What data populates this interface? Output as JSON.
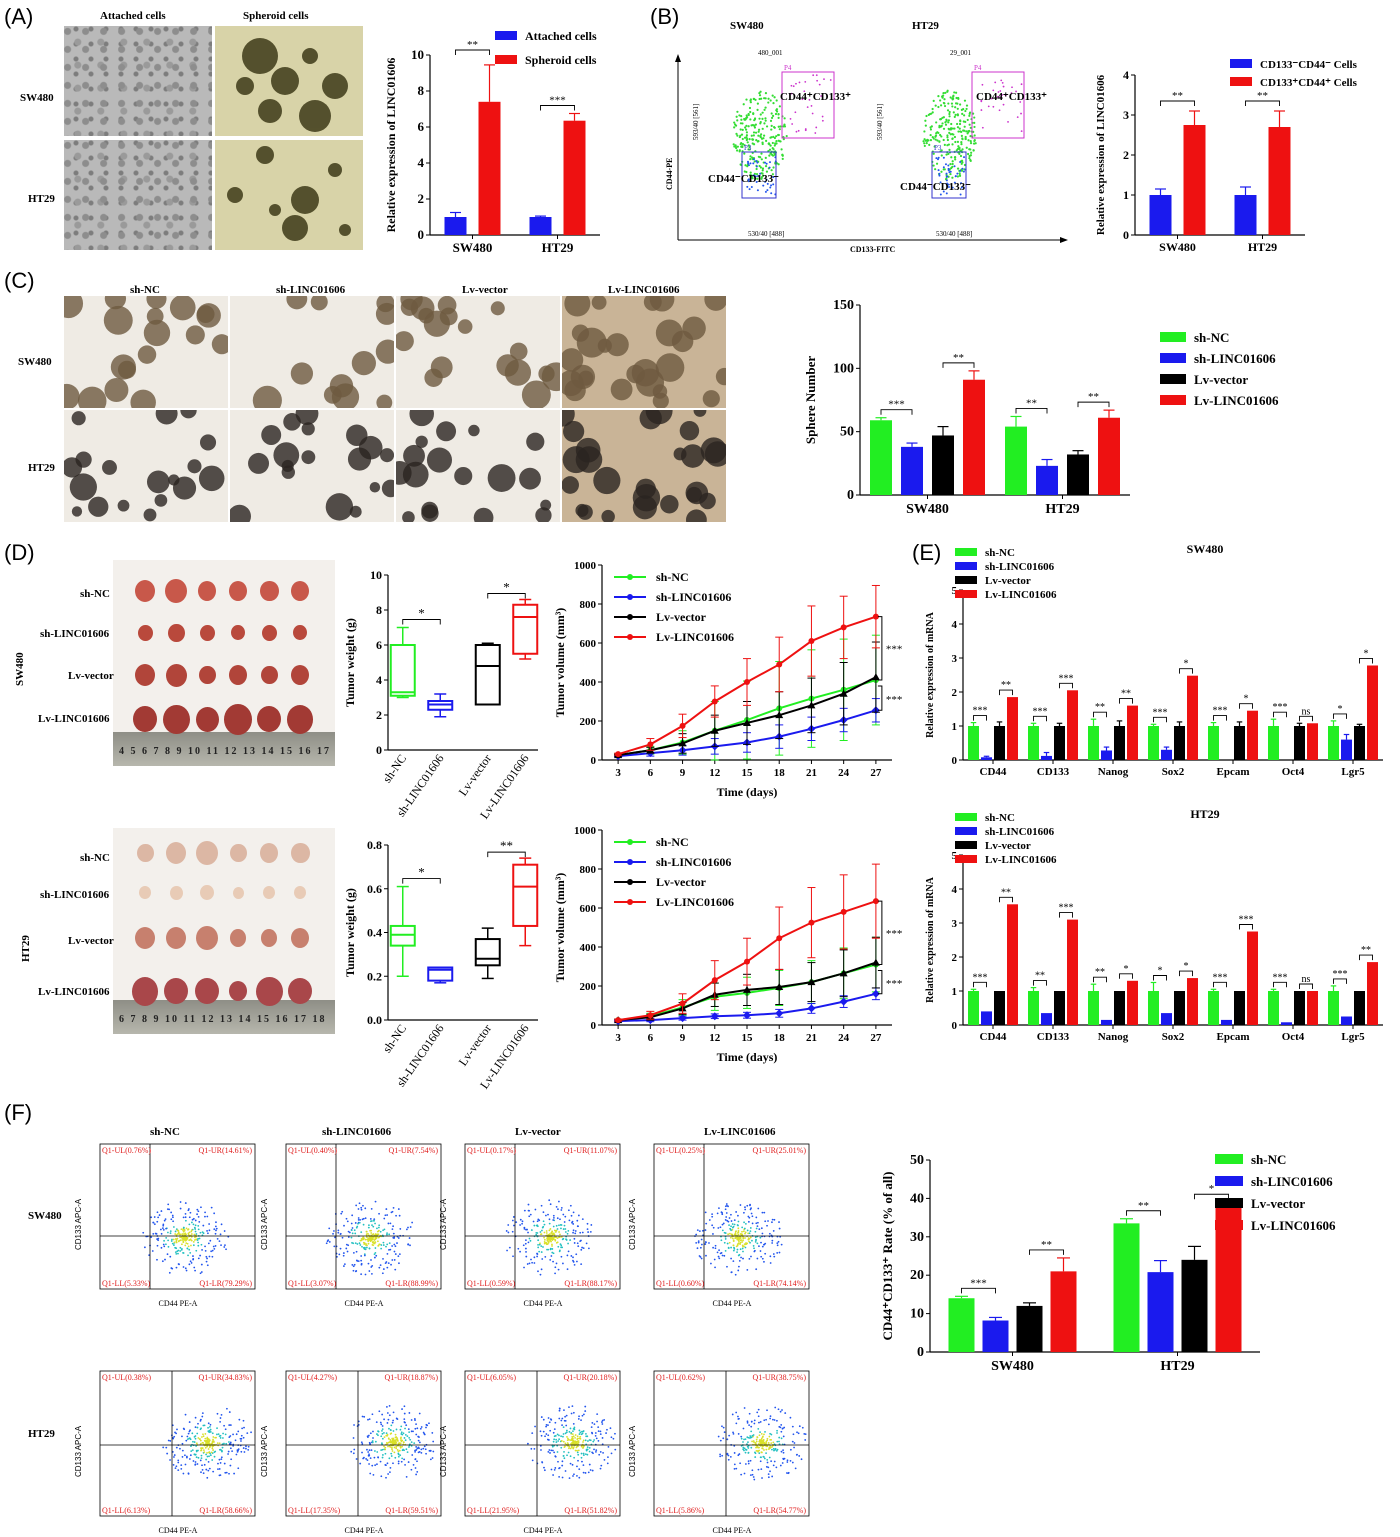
{
  "panels": {
    "A": {
      "letter": "(A)",
      "col_labels": [
        "Attached cells",
        "Spheroid cells"
      ],
      "row_labels": [
        "SW480",
        "HT29"
      ]
    },
    "B": {
      "letter": "(B)",
      "plot_titles": [
        "SW480",
        "HT29"
      ],
      "sample_names": [
        "480_001",
        "29_001"
      ],
      "gates_hi": "CD44⁺CD133⁺",
      "gates_lo": "CD44⁻CD133⁻",
      "xlabel": "CD133-FITC",
      "ylabel": "CD44-PE",
      "x_channel": "530/40 [488]",
      "y_channel": "593/40 [561]",
      "gate_p4": "P4",
      "gate_p3": "P3"
    },
    "C": {
      "letter": "(C)",
      "col_labels": [
        "sh-NC",
        "sh-LINC01606",
        "Lv-vector",
        "Lv-LINC01606"
      ],
      "row_labels": [
        "SW480",
        "HT29"
      ]
    },
    "D": {
      "letter": "(D)",
      "row_labels": [
        "SW480",
        "HT29"
      ],
      "photo_labels": [
        "sh-NC",
        "sh-LINC01606",
        "Lv-vector",
        "Lv-LINC01606"
      ],
      "ruler_sw": "4 5 6 7 8 9 10 11 12 13 14 15 16 17 18",
      "ruler_ht": "6 7 8 9 10 11 12 13 14 15 16 17 18"
    },
    "E": {
      "letter": "(E)"
    },
    "F": {
      "letter": "(F)",
      "col_labels": [
        "sh-NC",
        "sh-LINC01606",
        "Lv-vector",
        "Lv-LINC01606"
      ],
      "row_labels": [
        "SW480",
        "HT29"
      ],
      "xlabel": "CD44 PE-A",
      "ylabel": "CD133 APC-A",
      "quadrants": [
        [
          "Q1-UL(0.76%)",
          "Q1-UR(14.61%)",
          "Q1-LL(5.33%)",
          "Q1-LR(79.29%)"
        ],
        [
          "Q1-UL(0.40%)",
          "Q1-UR(7.54%)",
          "Q1-LL(3.07%)",
          "Q1-LR(88.99%)"
        ],
        [
          "Q1-UL(0.17%)",
          "Q1-UR(11.07%)",
          "Q1-LL(0.59%)",
          "Q1-LR(88.17%)"
        ],
        [
          "Q1-UL(0.25%)",
          "Q1-UR(25.01%)",
          "Q1-LL(0.60%)",
          "Q1-LR(74.14%)"
        ],
        [
          "Q1-UL(0.38%)",
          "Q1-UR(34.83%)",
          "Q1-LL(6.13%)",
          "Q1-LR(58.66%)"
        ],
        [
          "Q1-UL(4.27%)",
          "Q1-UR(18.87%)",
          "Q1-LL(17.35%)",
          "Q1-LR(59.51%)"
        ],
        [
          "Q1-UL(6.05%)",
          "Q1-UR(20.18%)",
          "Q1-LL(21.95%)",
          "Q1-LR(51.82%)"
        ],
        [
          "Q1-UL(0.62%)",
          "Q1-UR(38.75%)",
          "Q1-LL(5.86%)",
          "Q1-LR(54.77%)"
        ]
      ]
    }
  },
  "colors": {
    "green": "#22ee22",
    "blue": "#1a1aee",
    "black": "#000000",
    "red": "#ee1111",
    "magenta": "#cc33cc",
    "flow_blue": "#2255ee",
    "flow_green": "#33dd33"
  },
  "chart_data": [
    {
      "id": "A",
      "type": "bar",
      "categories": [
        "SW480",
        "HT29"
      ],
      "series": [
        {
          "name": "Attached cells",
          "values": [
            1.0,
            1.0
          ],
          "err": [
            0.25,
            0.05
          ]
        },
        {
          "name": "Spheroid cells",
          "values": [
            7.4,
            6.35
          ],
          "err": [
            2.05,
            0.4
          ]
        }
      ],
      "ylabel": "Relative expression of LINC01606",
      "ylim": [
        0,
        10
      ],
      "yticks": [
        0,
        2,
        4,
        6,
        8,
        10
      ],
      "sig": [
        "**",
        "***"
      ]
    },
    {
      "id": "B",
      "type": "bar",
      "categories": [
        "SW480",
        "HT29"
      ],
      "series": [
        {
          "name": "CD133⁻CD44⁻ Cells",
          "values": [
            1.0,
            1.0
          ],
          "err": [
            0.15,
            0.2
          ]
        },
        {
          "name": "CD133⁺CD44⁺ Cells",
          "values": [
            2.75,
            2.7
          ],
          "err": [
            0.35,
            0.4
          ]
        }
      ],
      "ylabel": "Relative expression of LINC01606",
      "ylim": [
        0,
        4
      ],
      "yticks": [
        0,
        1,
        2,
        3,
        4
      ],
      "sig": [
        "**",
        "**"
      ]
    },
    {
      "id": "C",
      "type": "bar",
      "categories": [
        "SW480",
        "HT29"
      ],
      "series": [
        {
          "name": "sh-NC",
          "values": [
            59,
            54
          ],
          "err": [
            2,
            8
          ]
        },
        {
          "name": "sh-LINC01606",
          "values": [
            38,
            23
          ],
          "err": [
            3,
            5
          ]
        },
        {
          "name": "Lv-vector",
          "values": [
            47,
            32
          ],
          "err": [
            7,
            3
          ]
        },
        {
          "name": "Lv-LINC01606",
          "values": [
            91,
            61
          ],
          "err": [
            7,
            6
          ]
        }
      ],
      "ylabel": "Sphere Number",
      "ylim": [
        0,
        150
      ],
      "yticks": [
        0,
        50,
        100,
        150
      ],
      "sig": [
        "***",
        "**",
        "**",
        "**"
      ]
    },
    {
      "id": "D-box-SW480",
      "type": "box",
      "categories": [
        "sh-NC",
        "sh-LINC01606",
        "Lv-vector",
        "Lv-LINC01606"
      ],
      "ylabel": "Tumor weight (g)",
      "ylim": [
        0,
        10
      ],
      "yticks": [
        0,
        2,
        4,
        6,
        8,
        10
      ],
      "boxes": [
        [
          3.0,
          3.1,
          3.3,
          6.0,
          7.0
        ],
        [
          1.9,
          2.3,
          2.6,
          2.8,
          3.2
        ],
        [
          2.6,
          2.6,
          4.8,
          6.0,
          6.1
        ],
        [
          5.2,
          5.5,
          7.6,
          8.3,
          8.6
        ]
      ],
      "sig": [
        "*",
        "*"
      ]
    },
    {
      "id": "D-line-SW480",
      "type": "line",
      "x": [
        3,
        6,
        9,
        12,
        15,
        18,
        21,
        24,
        27
      ],
      "series": [
        {
          "name": "sh-NC",
          "values": [
            25,
            50,
            90,
            150,
            205,
            265,
            315,
            360,
            410
          ],
          "err": [
            5,
            20,
            60,
            150,
            200,
            240,
            250,
            260,
            230
          ]
        },
        {
          "name": "sh-LINC01606",
          "values": [
            20,
            35,
            50,
            70,
            90,
            120,
            160,
            205,
            255
          ],
          "err": [
            5,
            15,
            25,
            40,
            50,
            60,
            60,
            60,
            60
          ]
        },
        {
          "name": "Lv-vector",
          "values": [
            25,
            50,
            85,
            150,
            190,
            230,
            280,
            340,
            425
          ],
          "err": [
            5,
            15,
            50,
            80,
            110,
            120,
            140,
            160,
            180
          ]
        },
        {
          "name": "Lv-LINC01606",
          "values": [
            30,
            80,
            175,
            300,
            400,
            490,
            610,
            680,
            735
          ],
          "err": [
            5,
            30,
            60,
            80,
            120,
            140,
            180,
            160,
            160
          ]
        }
      ],
      "xlabel": "Time (days)",
      "ylabel": "Tumor volume (mm³)",
      "ylim": [
        0,
        1000
      ],
      "yticks": [
        0,
        200,
        400,
        600,
        800,
        1000
      ],
      "sig": [
        "***",
        "***"
      ]
    },
    {
      "id": "D-box-HT29",
      "type": "box",
      "categories": [
        "sh-NC",
        "sh-LINC01606",
        "Lv-vector",
        "Lv-LINC01606"
      ],
      "ylabel": "Tumor weight (g)",
      "ylim": [
        0,
        0.8
      ],
      "yticks": [
        0.0,
        0.2,
        0.4,
        0.6,
        0.8
      ],
      "boxes": [
        [
          0.2,
          0.34,
          0.39,
          0.43,
          0.61
        ],
        [
          0.17,
          0.18,
          0.23,
          0.24,
          0.24
        ],
        [
          0.19,
          0.25,
          0.28,
          0.37,
          0.42
        ],
        [
          0.34,
          0.43,
          0.61,
          0.71,
          0.74
        ]
      ],
      "sig": [
        "*",
        "**"
      ]
    },
    {
      "id": "D-line-HT29",
      "type": "line",
      "x": [
        3,
        6,
        9,
        12,
        15,
        18,
        21,
        24,
        27
      ],
      "series": [
        {
          "name": "sh-NC",
          "values": [
            25,
            45,
            90,
            145,
            165,
            190,
            220,
            265,
            310
          ],
          "err": [
            5,
            15,
            40,
            70,
            80,
            90,
            110,
            130,
            140
          ]
        },
        {
          "name": "sh-LINC01606",
          "values": [
            20,
            25,
            35,
            45,
            50,
            60,
            85,
            120,
            160
          ],
          "err": [
            5,
            8,
            10,
            12,
            15,
            20,
            25,
            30,
            30
          ]
        },
        {
          "name": "Lv-vector",
          "values": [
            25,
            40,
            85,
            155,
            180,
            195,
            220,
            265,
            320
          ],
          "err": [
            5,
            15,
            30,
            60,
            80,
            90,
            100,
            120,
            130
          ]
        },
        {
          "name": "Lv-LINC01606",
          "values": [
            25,
            50,
            110,
            230,
            325,
            445,
            525,
            580,
            635
          ],
          "err": [
            5,
            20,
            50,
            100,
            120,
            160,
            180,
            190,
            190
          ]
        }
      ],
      "xlabel": "Time (days)",
      "ylabel": "Tumor volume (mm³)",
      "ylim": [
        0,
        1000
      ],
      "yticks": [
        0,
        200,
        400,
        600,
        800,
        1000
      ],
      "sig": [
        "***",
        "***"
      ]
    },
    {
      "id": "E-SW480",
      "type": "bar",
      "title": "SW480",
      "categories": [
        "CD44",
        "CD133",
        "Nanog",
        "Sox2",
        "Epcam",
        "Oct4",
        "Lgr5"
      ],
      "series": [
        {
          "name": "sh-NC",
          "values": [
            1,
            1,
            1,
            1,
            1,
            1,
            1
          ],
          "err": [
            0.1,
            0.08,
            0.2,
            0.05,
            0.1,
            0.2,
            0.15
          ]
        },
        {
          "name": "sh-LINC01606",
          "values": [
            0.08,
            0.12,
            0.28,
            0.3,
            0,
            0,
            0.6
          ],
          "err": [
            0.03,
            0.1,
            0.1,
            0.08,
            0,
            0,
            0.15
          ]
        },
        {
          "name": "Lv-vector",
          "values": [
            1,
            1,
            1,
            1,
            1,
            1,
            1
          ],
          "err": [
            0.12,
            0.08,
            0.15,
            0.12,
            0.12,
            0.08,
            0.05
          ]
        },
        {
          "name": "Lv-LINC01606",
          "values": [
            1.85,
            2.05,
            1.6,
            2.48,
            1.45,
            1.08,
            2.78
          ]
        }
      ],
      "ylabel": "Relative expression of mRNA",
      "ylim": [
        0,
        5
      ],
      "yticks": [
        0,
        1,
        2,
        3,
        4,
        5
      ],
      "sig": [
        [
          "***",
          "**"
        ],
        [
          "***",
          "***"
        ],
        [
          "**",
          "**"
        ],
        [
          "***",
          "*"
        ],
        [
          "***",
          "*"
        ],
        [
          "***",
          "ns"
        ],
        [
          "*",
          "*"
        ]
      ]
    },
    {
      "id": "E-HT29",
      "type": "bar",
      "title": "HT29",
      "categories": [
        "CD44",
        "CD133",
        "Nanog",
        "Sox2",
        "Epcam",
        "Oct4",
        "Lgr5"
      ],
      "series": [
        {
          "name": "sh-NC",
          "values": [
            1,
            1,
            1,
            1,
            1,
            1,
            1
          ],
          "err": [
            0.05,
            0.1,
            0.2,
            0.25,
            0.05,
            0.05,
            0.15
          ]
        },
        {
          "name": "sh-LINC01606",
          "values": [
            0.4,
            0.35,
            0.15,
            0.35,
            0.15,
            0.08,
            0.25
          ]
        },
        {
          "name": "Lv-vector",
          "values": [
            1,
            1,
            1,
            1,
            1,
            1,
            1
          ]
        },
        {
          "name": "Lv-LINC01606",
          "values": [
            3.55,
            3.1,
            1.3,
            1.38,
            2.75,
            1.0,
            1.85
          ]
        }
      ],
      "ylabel": "Relative expression of mRNA",
      "ylim": [
        0,
        5
      ],
      "yticks": [
        0,
        1,
        2,
        3,
        4,
        5
      ],
      "sig": [
        [
          "***",
          "**"
        ],
        [
          "**",
          "***"
        ],
        [
          "**",
          "*"
        ],
        [
          "*",
          "*"
        ],
        [
          "***",
          "***"
        ],
        [
          "***",
          "ns"
        ],
        [
          "***",
          "**"
        ]
      ]
    },
    {
      "id": "F",
      "type": "bar",
      "categories": [
        "SW480",
        "HT29"
      ],
      "series": [
        {
          "name": "sh-NC",
          "values": [
            14,
            33.5
          ],
          "err": [
            0.5,
            1.2
          ]
        },
        {
          "name": "sh-LINC01606",
          "values": [
            8.2,
            20.8
          ],
          "err": [
            0.8,
            3
          ]
        },
        {
          "name": "Lv-vector",
          "values": [
            12,
            24
          ],
          "err": [
            0.8,
            3.5
          ]
        },
        {
          "name": "Lv-LINC01606",
          "values": [
            21,
            38.7
          ],
          "err": [
            3.5,
            0.3
          ]
        }
      ],
      "ylabel": "CD44⁺CD133⁺ Rate (% of all)",
      "ylim": [
        0,
        50
      ],
      "yticks": [
        0,
        10,
        20,
        30,
        40,
        50
      ],
      "sig": [
        "***",
        "**",
        "**",
        "*"
      ]
    }
  ]
}
